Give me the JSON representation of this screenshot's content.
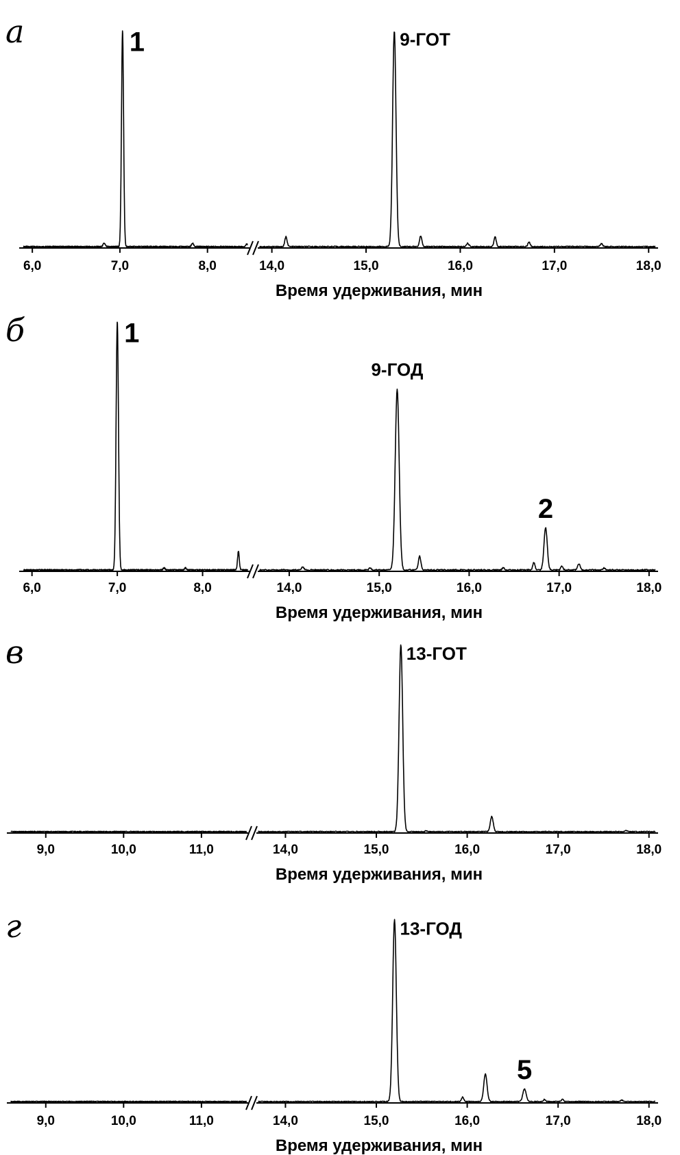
{
  "chart_data": [
    {
      "type": "line",
      "panel_letter": "а",
      "xlabel": "Время удерживания, мин",
      "axis_break": {
        "before": 8.5,
        "after": 13.8
      },
      "ticks": [
        {
          "value": 6.0,
          "label": "6,0"
        },
        {
          "value": 7.0,
          "label": "7,0"
        },
        {
          "value": 8.0,
          "label": "8,0"
        },
        {
          "value": 14.0,
          "label": "14,0"
        },
        {
          "value": 15.0,
          "label": "15,0"
        },
        {
          "value": 16.0,
          "label": "16,0"
        },
        {
          "value": 17.0,
          "label": "17,0"
        },
        {
          "value": 18.0,
          "label": "18,0"
        }
      ],
      "ylim": [
        0,
        100
      ],
      "peaks": [
        {
          "x": 6.82,
          "height": 1.5,
          "width": 0.012
        },
        {
          "x": 7.03,
          "height": 98,
          "width": 0.012
        },
        {
          "x": 7.83,
          "height": 1.5,
          "width": 0.012
        },
        {
          "x": 8.45,
          "height": 1.2,
          "width": 0.012
        },
        {
          "x": 14.15,
          "height": 4.5,
          "width": 0.012
        },
        {
          "x": 15.3,
          "height": 98,
          "width": 0.018
        },
        {
          "x": 15.58,
          "height": 5,
          "width": 0.012
        },
        {
          "x": 16.08,
          "height": 1.5,
          "width": 0.012
        },
        {
          "x": 16.37,
          "height": 4.5,
          "width": 0.012
        },
        {
          "x": 16.73,
          "height": 2,
          "width": 0.012
        },
        {
          "x": 17.5,
          "height": 1.5,
          "width": 0.012
        }
      ],
      "labels": [
        {
          "text": "1",
          "x": 7.03,
          "size": "big"
        },
        {
          "text": "9-ГОТ",
          "x": 15.3,
          "size": "normal"
        }
      ]
    },
    {
      "type": "line",
      "panel_letter": "б",
      "xlabel": "Время удерживания, мин",
      "axis_break": {
        "before": 8.6,
        "after": 13.6
      },
      "ticks": [
        {
          "value": 6.0,
          "label": "6,0"
        },
        {
          "value": 7.0,
          "label": "7,0"
        },
        {
          "value": 8.0,
          "label": "8,0"
        },
        {
          "value": 14.0,
          "label": "14,0"
        },
        {
          "value": 15.0,
          "label": "15,0"
        },
        {
          "value": 16.0,
          "label": "16,0"
        },
        {
          "value": 17.0,
          "label": "17,0"
        },
        {
          "value": 18.0,
          "label": "18,0"
        }
      ],
      "ylim": [
        0,
        100
      ],
      "peaks": [
        {
          "x": 7.0,
          "height": 99,
          "width": 0.014
        },
        {
          "x": 7.55,
          "height": 0.8,
          "width": 0.012
        },
        {
          "x": 7.8,
          "height": 0.8,
          "width": 0.012
        },
        {
          "x": 8.42,
          "height": 7.5,
          "width": 0.01
        },
        {
          "x": 14.15,
          "height": 1.2,
          "width": 0.012
        },
        {
          "x": 14.9,
          "height": 0.8,
          "width": 0.012
        },
        {
          "x": 15.2,
          "height": 72,
          "width": 0.022
        },
        {
          "x": 15.45,
          "height": 5.5,
          "width": 0.014
        },
        {
          "x": 16.38,
          "height": 1,
          "width": 0.012
        },
        {
          "x": 16.72,
          "height": 3,
          "width": 0.012
        },
        {
          "x": 16.85,
          "height": 17,
          "width": 0.018
        },
        {
          "x": 17.03,
          "height": 1.5,
          "width": 0.012
        },
        {
          "x": 17.22,
          "height": 2.5,
          "width": 0.014
        },
        {
          "x": 17.5,
          "height": 0.8,
          "width": 0.012
        }
      ],
      "labels": [
        {
          "text": "1",
          "x": 7.0,
          "size": "big"
        },
        {
          "text": "9-ГОД",
          "x": 15.2,
          "size": "normal"
        },
        {
          "text": "2",
          "x": 16.85,
          "size": "big"
        }
      ]
    },
    {
      "type": "line",
      "panel_letter": "в",
      "xlabel": "Время удерживания, мин",
      "axis_break": {
        "before": 11.6,
        "after": 13.6
      },
      "ticks": [
        {
          "value": 9.0,
          "label": "9,0"
        },
        {
          "value": 10.0,
          "label": "10,0"
        },
        {
          "value": 11.0,
          "label": "11,0"
        },
        {
          "value": 14.0,
          "label": "14,0"
        },
        {
          "value": 15.0,
          "label": "15,0"
        },
        {
          "value": 16.0,
          "label": "16,0"
        },
        {
          "value": 17.0,
          "label": "17,0"
        },
        {
          "value": 18.0,
          "label": "18,0"
        }
      ],
      "ylim": [
        0,
        100
      ],
      "peaks": [
        {
          "x": 15.27,
          "height": 99,
          "width": 0.02
        },
        {
          "x": 15.55,
          "height": 0.5,
          "width": 0.012
        },
        {
          "x": 16.27,
          "height": 8,
          "width": 0.016
        },
        {
          "x": 17.75,
          "height": 0.5,
          "width": 0.012
        }
      ],
      "labels": [
        {
          "text": "13-ГОТ",
          "x": 15.27,
          "size": "normal"
        }
      ]
    },
    {
      "type": "line",
      "panel_letter": "г",
      "xlabel": "Время удерживания, мин",
      "axis_break": {
        "before": 11.6,
        "after": 13.6
      },
      "ticks": [
        {
          "value": 9.0,
          "label": "9,0"
        },
        {
          "value": 10.0,
          "label": "10,0"
        },
        {
          "value": 11.0,
          "label": "11,0"
        },
        {
          "value": 14.0,
          "label": "14,0"
        },
        {
          "value": 15.0,
          "label": "15,0"
        },
        {
          "value": 16.0,
          "label": "16,0"
        },
        {
          "value": 17.0,
          "label": "17,0"
        },
        {
          "value": 18.0,
          "label": "18,0"
        }
      ],
      "ylim": [
        0,
        100
      ],
      "peaks": [
        {
          "x": 15.2,
          "height": 99,
          "width": 0.02
        },
        {
          "x": 15.95,
          "height": 2.5,
          "width": 0.012
        },
        {
          "x": 16.2,
          "height": 15,
          "width": 0.018
        },
        {
          "x": 16.63,
          "height": 7,
          "width": 0.018
        },
        {
          "x": 16.85,
          "height": 1.2,
          "width": 0.012
        },
        {
          "x": 17.05,
          "height": 1.2,
          "width": 0.012
        },
        {
          "x": 17.7,
          "height": 0.8,
          "width": 0.014
        }
      ],
      "labels": [
        {
          "text": "13-ГОД",
          "x": 15.2,
          "size": "normal"
        },
        {
          "text": "5",
          "x": 16.63,
          "size": "big"
        }
      ]
    }
  ]
}
